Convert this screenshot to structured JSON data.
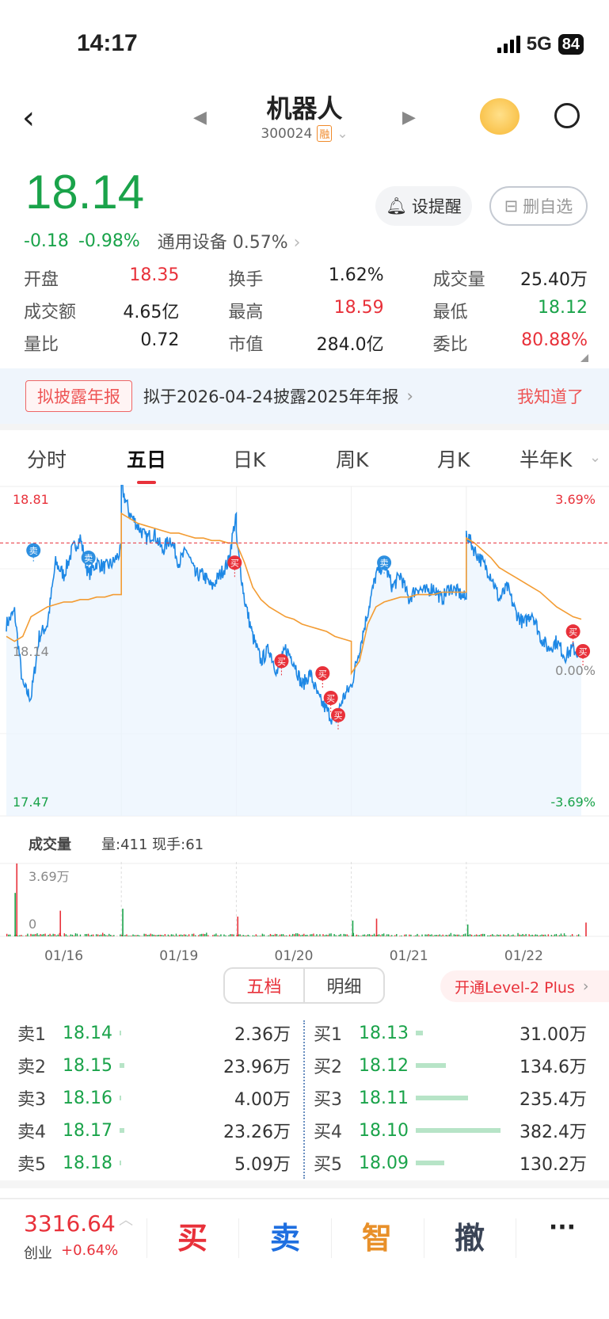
{
  "status": {
    "time": "14:17",
    "network": "5G",
    "battery": "84"
  },
  "header": {
    "title": "机器人",
    "code": "300024",
    "badge": "融"
  },
  "quote": {
    "price": "18.14",
    "change": "-0.18",
    "change_pct": "-0.98%",
    "sector": "通用设备",
    "sector_pct": "0.57%",
    "alert_label": "设提醒",
    "remove_label": "删自选"
  },
  "stats": [
    [
      {
        "label": "开盘",
        "value": "18.35",
        "color": "r"
      },
      {
        "label": "换手",
        "value": "1.62%",
        "color": ""
      },
      {
        "label": "成交量",
        "value": "25.40万",
        "color": ""
      }
    ],
    [
      {
        "label": "成交额",
        "value": "4.65亿",
        "color": ""
      },
      {
        "label": "最高",
        "value": "18.59",
        "color": "r"
      },
      {
        "label": "最低",
        "value": "18.12",
        "color": "g"
      }
    ],
    [
      {
        "label": "量比",
        "value": "0.72",
        "color": ""
      },
      {
        "label": "市值",
        "value": "284.0亿",
        "color": ""
      },
      {
        "label": "委比",
        "value": "80.88%",
        "color": "r"
      }
    ]
  ],
  "banner": {
    "tag": "拟披露年报",
    "text": "拟于2026-04-24披露2025年年报",
    "dismiss": "我知道了"
  },
  "kline_tabs": [
    "分时",
    "五日",
    "日K",
    "周K",
    "月K",
    "半年K"
  ],
  "active_tab": 1,
  "chart_data": {
    "type": "line",
    "y_max_label": "18.81",
    "y_mid_label": "18.14",
    "y_min_label": "17.47",
    "pct_max_label": "3.69%",
    "pct_mid_label": "0.00%",
    "pct_min_label": "-3.69%",
    "ylim": [
      17.47,
      18.81
    ],
    "reference_line": 18.58,
    "days": [
      "01/16",
      "01/19",
      "01/20",
      "01/21",
      "01/22"
    ],
    "price": [
      [
        18.25,
        18.3,
        18.0,
        17.95,
        18.2,
        18.25,
        18.5,
        18.45,
        18.55,
        18.6,
        18.45,
        18.5,
        18.48,
        18.5,
        18.55
      ],
      [
        18.81,
        18.7,
        18.65,
        18.6,
        18.62,
        18.55,
        18.6,
        18.5,
        18.55,
        18.45,
        18.45,
        18.4,
        18.45,
        18.5,
        18.7
      ],
      [
        18.6,
        18.35,
        18.2,
        18.1,
        18.15,
        18.05,
        18.15,
        18.1,
        18.0,
        18.05,
        17.95,
        17.9,
        17.85,
        17.95,
        18.0
      ],
      [
        18.0,
        18.15,
        18.3,
        18.45,
        18.5,
        18.4,
        18.45,
        18.35,
        18.4,
        18.38,
        18.4,
        18.35,
        18.4,
        18.38,
        18.35
      ],
      [
        18.62,
        18.55,
        18.5,
        18.45,
        18.35,
        18.4,
        18.3,
        18.25,
        18.3,
        18.2,
        18.15,
        18.18,
        18.12,
        18.15,
        18.12
      ]
    ],
    "avg": [
      [
        18.2,
        18.18,
        18.2,
        18.28,
        18.3,
        18.32,
        18.33,
        18.34,
        18.34,
        18.35,
        18.35,
        18.36,
        18.36,
        18.37,
        18.37
      ],
      [
        18.7,
        18.68,
        18.66,
        18.65,
        18.64,
        18.63,
        18.62,
        18.62,
        18.61,
        18.6,
        18.6,
        18.59,
        18.59,
        18.58,
        18.58
      ],
      [
        18.58,
        18.5,
        18.4,
        18.35,
        18.32,
        18.3,
        18.28,
        18.27,
        18.25,
        18.24,
        18.23,
        18.22,
        18.2,
        18.19,
        18.18
      ],
      [
        18.05,
        18.1,
        18.25,
        18.32,
        18.34,
        18.35,
        18.36,
        18.36,
        18.37,
        18.37,
        18.37,
        18.38,
        18.38,
        18.38,
        18.38
      ],
      [
        18.6,
        18.58,
        18.55,
        18.52,
        18.48,
        18.46,
        18.44,
        18.42,
        18.4,
        18.38,
        18.35,
        18.32,
        18.3,
        18.28,
        18.27
      ]
    ],
    "markers": [
      {
        "type": "卖",
        "day": 0,
        "idx": 3.3,
        "price": 18.55
      },
      {
        "type": "卖",
        "day": 0,
        "idx": 10,
        "price": 18.52
      },
      {
        "type": "买",
        "day": 1,
        "idx": 13.8,
        "price": 18.5
      },
      {
        "type": "买",
        "day": 2,
        "idx": 5.5,
        "price": 18.1
      },
      {
        "type": "买",
        "day": 2,
        "idx": 10.5,
        "price": 18.05
      },
      {
        "type": "买",
        "day": 2,
        "idx": 11.5,
        "price": 17.95
      },
      {
        "type": "买",
        "day": 2,
        "idx": 12.4,
        "price": 17.88
      },
      {
        "type": "卖",
        "day": 3,
        "idx": 4,
        "price": 18.5
      },
      {
        "type": "买",
        "day": 4,
        "idx": 13,
        "price": 18.22
      },
      {
        "type": "买",
        "day": 4,
        "idx": 14.2,
        "price": 18.14
      }
    ],
    "sell_color": "#2d8fe0",
    "buy_color": "#e8313a",
    "price_color": "#1e88e5",
    "avg_color": "#f39c33"
  },
  "volume": {
    "label": "成交量",
    "info": "量:411 现手:61",
    "max_label": "3.69万",
    "zero_label": "0",
    "max": 36900,
    "spikes": [
      {
        "day": 0,
        "idx": 1.2,
        "v": 36900
      },
      {
        "day": 0,
        "idx": 1.0,
        "v": 22000
      },
      {
        "day": 0,
        "idx": 6.5,
        "v": 13000
      },
      {
        "day": 1,
        "idx": 0.1,
        "v": 14000
      },
      {
        "day": 2,
        "idx": 0.1,
        "v": 10000
      },
      {
        "day": 3,
        "idx": 0.1,
        "v": 8000
      },
      {
        "day": 3,
        "idx": 3,
        "v": 9000
      },
      {
        "day": 4,
        "idx": 0.1,
        "v": 6000
      },
      {
        "day": 4,
        "idx": 14.5,
        "v": 7000
      }
    ]
  },
  "orderbook": {
    "tabs": [
      "五档",
      "明细"
    ],
    "level2": "开通Level-2 Plus",
    "asks": [
      {
        "label": "卖1",
        "price": "18.14",
        "vol": "2.36万",
        "bar": 2.36
      },
      {
        "label": "卖2",
        "price": "18.15",
        "vol": "23.96万",
        "bar": 23.96
      },
      {
        "label": "卖3",
        "price": "18.16",
        "vol": "4.00万",
        "bar": 4.0
      },
      {
        "label": "卖4",
        "price": "18.17",
        "vol": "23.26万",
        "bar": 23.26
      },
      {
        "label": "卖5",
        "price": "18.18",
        "vol": "5.09万",
        "bar": 5.09
      }
    ],
    "bids": [
      {
        "label": "买1",
        "price": "18.13",
        "vol": "31.00万",
        "bar": 31.0
      },
      {
        "label": "买2",
        "price": "18.12",
        "vol": "134.6万",
        "bar": 134.6
      },
      {
        "label": "买3",
        "price": "18.11",
        "vol": "235.4万",
        "bar": 235.4
      },
      {
        "label": "买4",
        "price": "18.10",
        "vol": "382.4万",
        "bar": 382.4
      },
      {
        "label": "买5",
        "price": "18.09",
        "vol": "130.2万",
        "bar": 130.2
      }
    ]
  },
  "bottom": {
    "index_value": "3316.64",
    "index_name": "创业",
    "index_pct": "+0.64%",
    "buy": "买",
    "sell": "卖",
    "smart": "智",
    "cancel": "撤",
    "more": "···"
  }
}
